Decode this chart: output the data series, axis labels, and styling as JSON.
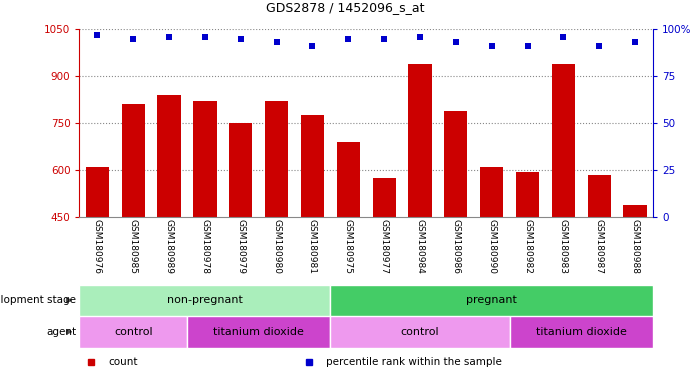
{
  "title": "GDS2878 / 1452096_s_at",
  "samples": [
    "GSM180976",
    "GSM180985",
    "GSM180989",
    "GSM180978",
    "GSM180979",
    "GSM180980",
    "GSM180981",
    "GSM180975",
    "GSM180977",
    "GSM180984",
    "GSM180986",
    "GSM180990",
    "GSM180982",
    "GSM180983",
    "GSM180987",
    "GSM180988"
  ],
  "counts": [
    610,
    810,
    840,
    820,
    750,
    820,
    775,
    690,
    575,
    940,
    790,
    610,
    595,
    940,
    585,
    490
  ],
  "percentile_ranks": [
    97,
    95,
    96,
    96,
    95,
    93,
    91,
    95,
    95,
    96,
    93,
    91,
    91,
    96,
    91,
    93
  ],
  "ylim_left": [
    450,
    1050
  ],
  "ylim_right": [
    0,
    100
  ],
  "yticks_left": [
    450,
    600,
    750,
    900,
    1050
  ],
  "yticks_right": [
    0,
    25,
    50,
    75,
    100
  ],
  "bar_color": "#cc0000",
  "dot_color": "#0000cc",
  "dev_stage_row": {
    "label": "development stage",
    "groups": [
      {
        "text": "non-pregnant",
        "start": 0,
        "end": 7,
        "color": "#aaeebb"
      },
      {
        "text": "pregnant",
        "start": 7,
        "end": 16,
        "color": "#44cc66"
      }
    ]
  },
  "agent_row": {
    "label": "agent",
    "groups": [
      {
        "text": "control",
        "start": 0,
        "end": 3,
        "color": "#ee99ee"
      },
      {
        "text": "titanium dioxide",
        "start": 3,
        "end": 7,
        "color": "#cc44cc"
      },
      {
        "text": "control",
        "start": 7,
        "end": 12,
        "color": "#ee99ee"
      },
      {
        "text": "titanium dioxide",
        "start": 12,
        "end": 16,
        "color": "#cc44cc"
      }
    ]
  },
  "legend": [
    {
      "color": "#cc0000",
      "label": "count"
    },
    {
      "color": "#0000cc",
      "label": "percentile rank within the sample"
    }
  ]
}
